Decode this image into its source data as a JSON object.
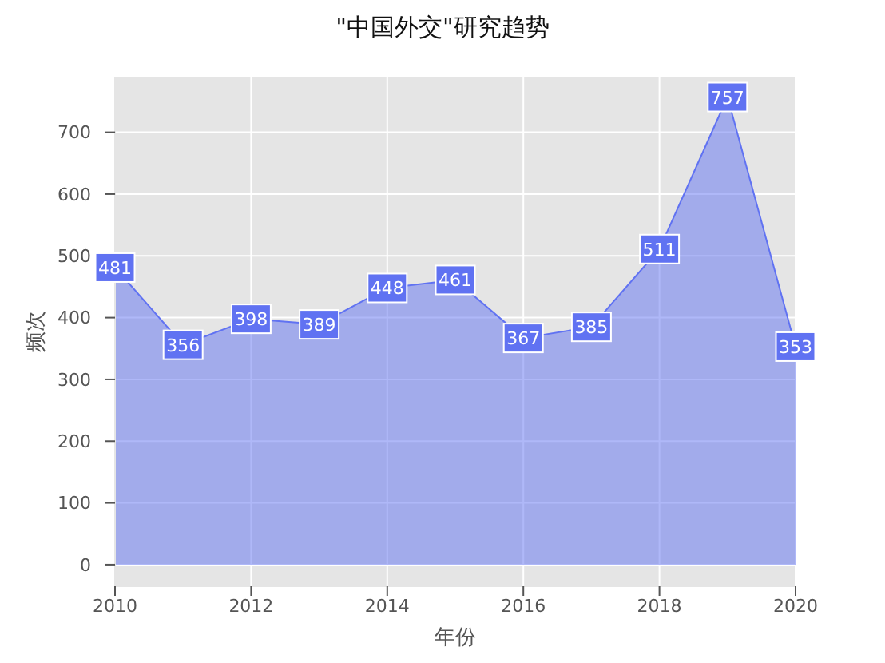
{
  "chart_data": {
    "type": "area",
    "title": "\"中国外交\"研究趋势",
    "xlabel": "年份",
    "ylabel": "频次",
    "x": [
      2010,
      2011,
      2012,
      2013,
      2014,
      2015,
      2016,
      2017,
      2018,
      2019,
      2020
    ],
    "values": [
      481,
      356,
      398,
      389,
      448,
      461,
      367,
      385,
      511,
      757,
      353
    ],
    "color": "#6072f2",
    "xlim": [
      2010,
      2020
    ],
    "xticks": [
      2010,
      2012,
      2014,
      2016,
      2018,
      2020
    ],
    "ylim": [
      -35,
      790
    ],
    "yticks": [
      0,
      100,
      200,
      300,
      400,
      500,
      600,
      700
    ],
    "grid": true,
    "data_labels": true,
    "line_style": "solid"
  }
}
